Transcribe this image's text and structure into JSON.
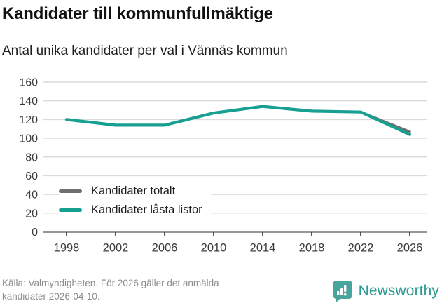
{
  "title": "Kandidater till kommunfullmäktige",
  "subtitle": "Antal unika kandidater per val i Vännäs kommun",
  "chart_data": {
    "type": "line",
    "x": [
      1998,
      2002,
      2006,
      2010,
      2014,
      2018,
      2022,
      2026
    ],
    "series": [
      {
        "name": "Kandidater totalt",
        "color": "#6f6f6f",
        "values": [
          120,
          114,
          114,
          127,
          134,
          129,
          128,
          107
        ]
      },
      {
        "name": "Kandidater låsta listor",
        "color": "#17a092",
        "values": [
          120,
          114,
          114,
          127,
          134,
          129,
          128,
          104
        ]
      }
    ],
    "ylim": [
      0,
      160
    ],
    "ytick_step": 20,
    "grid": "horizontal",
    "legend_position": "inside-bottom-left",
    "colors": {
      "gridline": "#dcdcdc",
      "axis": "#2e2e2e",
      "tick_text": "#3b3b3b"
    }
  },
  "footer": {
    "source_lines": [
      "Källa: Valmyndigheten. För 2026 gäller det anmälda",
      "kandidater 2026-04-10."
    ],
    "brand": "Newsworthy"
  }
}
